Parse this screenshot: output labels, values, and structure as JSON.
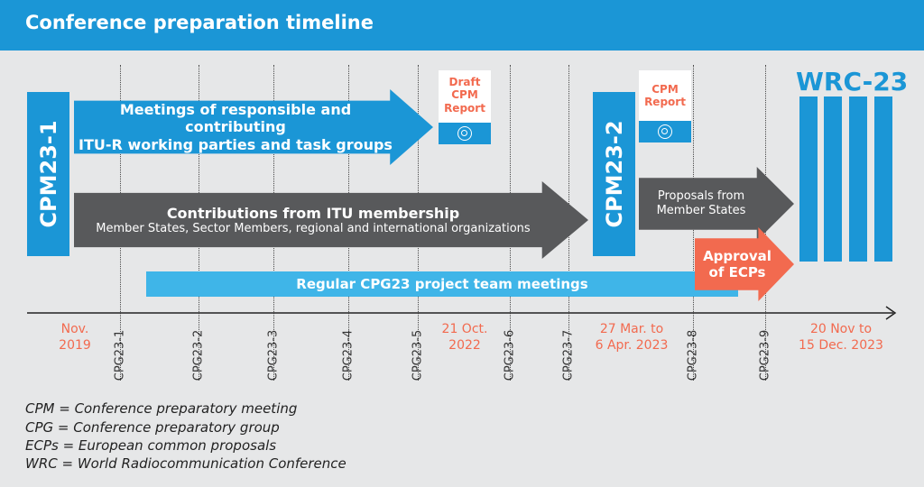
{
  "title": "Conference preparation timeline",
  "cpm1_label": "CPM23-1",
  "cpm2_label": "CPM23-2",
  "wrc_label": "WRC-23",
  "arrow_meetings": {
    "line1": "Meetings of responsible and contributing",
    "line2": "ITU-R working parties and task groups"
  },
  "arrow_contributions": {
    "line1": "Contributions from ITU membership",
    "line2": "Member States, Sector Members, regional and international organizations"
  },
  "arrow_proposals": {
    "line1": "Proposals from",
    "line2": "Member States"
  },
  "arrow_approval": {
    "line1": "Approval",
    "line2": "of ECPs"
  },
  "regular_meetings": "Regular CPG23 project team meetings",
  "draft_report": {
    "line1": "Draft",
    "line2": "CPM",
    "line3": "Report"
  },
  "cpm_report": {
    "line1": "CPM",
    "line2": "Report"
  },
  "cpg_ticks": [
    "CPG23-1",
    "CPG23-2",
    "CPG23-3",
    "CPG23-4",
    "CPG23-5",
    "CPG23-6",
    "CPG23-7",
    "CPG23-8",
    "CPG23-9"
  ],
  "dates": {
    "nov_2019": {
      "line1": "Nov.",
      "line2": "2019"
    },
    "oct_2022": {
      "line1": "21 Oct.",
      "line2": "2022"
    },
    "mar_apr_2023": {
      "line1": "27 Mar. to",
      "line2": "6 Apr. 2023"
    },
    "nov_dec_2023": {
      "line1": "20 Nov to",
      "line2": "15 Dec. 2023"
    }
  },
  "legend": [
    "CPM = Conference preparatory meeting",
    "CPG = Conference preparatory group",
    "ECPs = European common proposals",
    "WRC = World Radiocommunication Conference"
  ],
  "colors": {
    "blue": "#1b96d6",
    "light_blue": "#3fb5e8",
    "dark_gray": "#58595b",
    "orange": "#f26a4f",
    "background": "#e6e7e8"
  }
}
